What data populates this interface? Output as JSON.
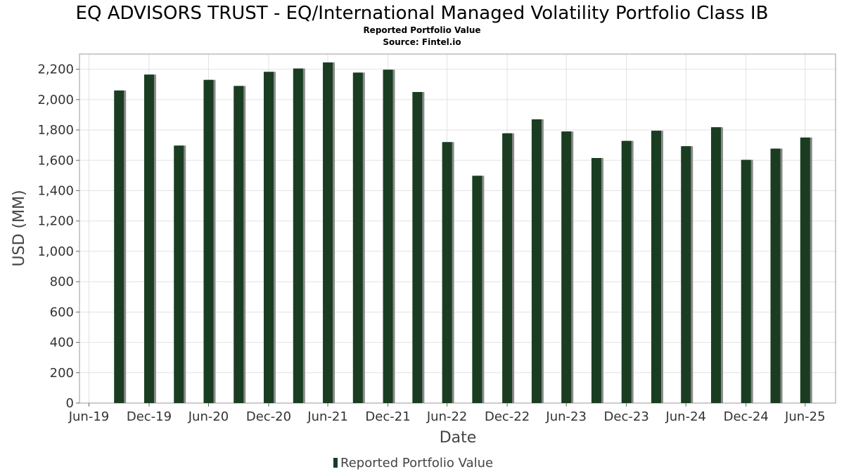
{
  "chart_data": {
    "type": "bar",
    "title": "EQ ADVISORS TRUST - EQ/International Managed Volatility Portfolio Class IB",
    "subtitle": "Reported Portfolio Value",
    "source": "Source: Fintel.io",
    "xlabel": "Date",
    "ylabel": "USD (MM)",
    "ylim": [
      0,
      2300
    ],
    "yticks": [
      0,
      200,
      400,
      600,
      800,
      1000,
      1200,
      1400,
      1600,
      1800,
      2000,
      2200
    ],
    "yticklabels": [
      "0",
      "200",
      "400",
      "600",
      "800",
      "1,000",
      "1,200",
      "1,400",
      "1,600",
      "1,800",
      "2,000",
      "2,200"
    ],
    "xlim": [
      "2019-06-01",
      "2025-10-01"
    ],
    "xticks": [
      "2019-06-30",
      "2019-12-31",
      "2020-06-30",
      "2020-12-31",
      "2021-06-30",
      "2021-12-31",
      "2022-06-30",
      "2022-12-31",
      "2023-06-30",
      "2023-12-31",
      "2024-06-30",
      "2024-12-31",
      "2025-06-30"
    ],
    "xticklabels": [
      "Jun-19",
      "Dec-19",
      "Jun-20",
      "Dec-20",
      "Jun-21",
      "Dec-21",
      "Jun-22",
      "Dec-22",
      "Jun-23",
      "Dec-23",
      "Jun-24",
      "Dec-24",
      "Jun-25"
    ],
    "grid": true,
    "legend_position": "bottom",
    "bar_color": "#1a3d22",
    "shadow_color": "#8a8a8a",
    "series": [
      {
        "name": "Reported Portfolio Value",
        "points": [
          {
            "x": "2019-09-30",
            "y": 2060
          },
          {
            "x": "2019-12-31",
            "y": 2165
          },
          {
            "x": "2020-03-31",
            "y": 1697
          },
          {
            "x": "2020-06-30",
            "y": 2130
          },
          {
            "x": "2020-09-30",
            "y": 2090
          },
          {
            "x": "2020-12-31",
            "y": 2183
          },
          {
            "x": "2021-03-31",
            "y": 2205
          },
          {
            "x": "2021-06-30",
            "y": 2245
          },
          {
            "x": "2021-09-30",
            "y": 2178
          },
          {
            "x": "2021-12-31",
            "y": 2197
          },
          {
            "x": "2022-03-31",
            "y": 2050
          },
          {
            "x": "2022-06-30",
            "y": 1720
          },
          {
            "x": "2022-09-30",
            "y": 1498
          },
          {
            "x": "2022-12-31",
            "y": 1778
          },
          {
            "x": "2023-03-31",
            "y": 1870
          },
          {
            "x": "2023-06-30",
            "y": 1790
          },
          {
            "x": "2023-09-30",
            "y": 1615
          },
          {
            "x": "2023-12-31",
            "y": 1728
          },
          {
            "x": "2024-03-31",
            "y": 1795
          },
          {
            "x": "2024-06-30",
            "y": 1693
          },
          {
            "x": "2024-09-30",
            "y": 1818
          },
          {
            "x": "2024-12-31",
            "y": 1603
          },
          {
            "x": "2025-03-31",
            "y": 1677
          },
          {
            "x": "2025-06-30",
            "y": 1750
          }
        ]
      }
    ]
  }
}
